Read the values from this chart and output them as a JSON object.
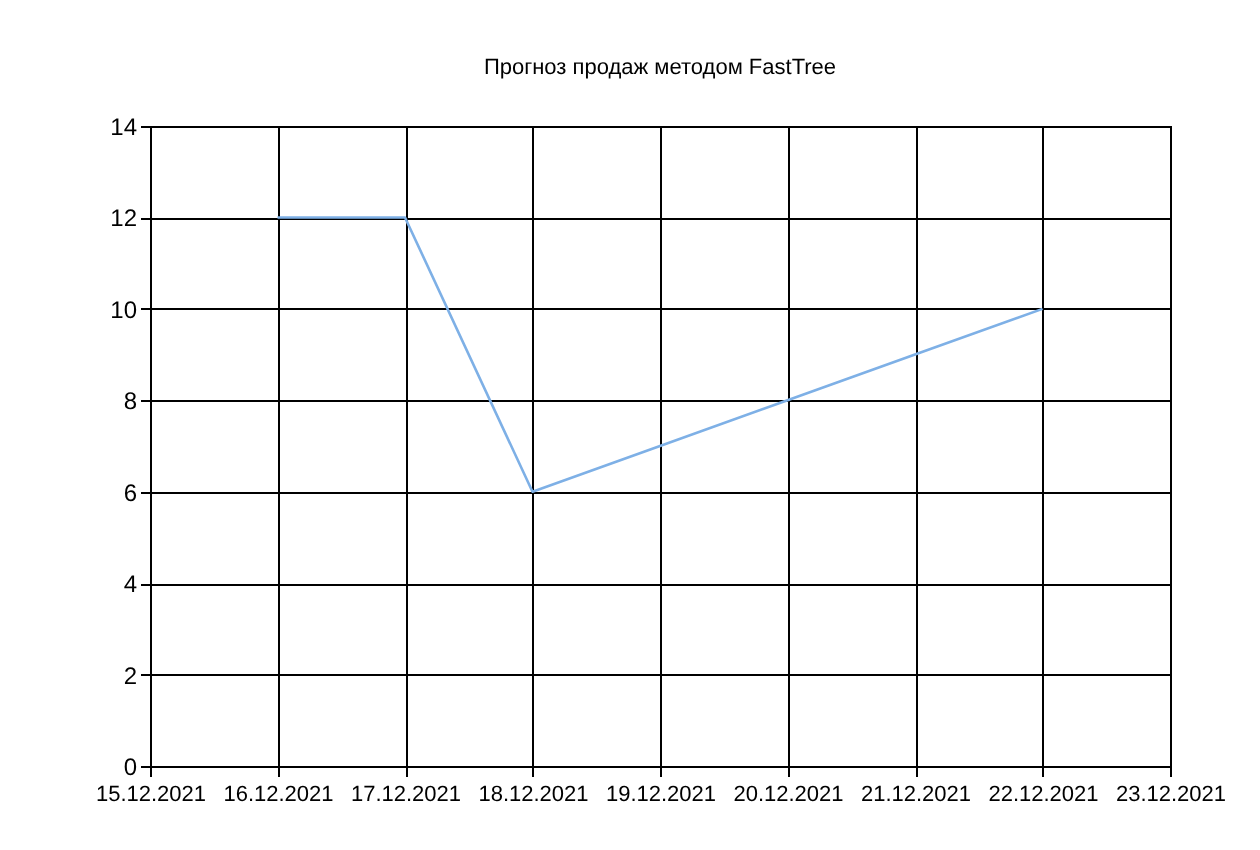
{
  "chart_data": {
    "type": "line",
    "title": "Прогноз продаж методом FastTree",
    "x": [
      "2021-12-16",
      "2021-12-17",
      "2021-12-18",
      "2021-12-19",
      "2021-12-20",
      "2021-12-21",
      "2021-12-22"
    ],
    "series": [
      {
        "color": "#7eb0e6",
        "values": [
          12,
          12,
          6,
          7,
          8,
          9,
          10
        ]
      }
    ],
    "xlim": [
      "2021-12-15",
      "2021-12-23"
    ],
    "xticks": [
      {
        "value": "2021-12-15",
        "label": "15.12.2021"
      },
      {
        "value": "2021-12-16",
        "label": "16.12.2021"
      },
      {
        "value": "2021-12-17",
        "label": "17.12.2021"
      },
      {
        "value": "2021-12-18",
        "label": "18.12.2021"
      },
      {
        "value": "2021-12-19",
        "label": "19.12.2021"
      },
      {
        "value": "2021-12-20",
        "label": "20.12.2021"
      },
      {
        "value": "2021-12-21",
        "label": "21.12.2021"
      },
      {
        "value": "2021-12-22",
        "label": "22.12.2021"
      },
      {
        "value": "2021-12-23",
        "label": "23.12.2021"
      }
    ],
    "ylim": [
      0,
      14
    ],
    "yticks": [
      0,
      2,
      4,
      6,
      8,
      10,
      12,
      14
    ],
    "grid": true,
    "marker": "none",
    "line_style": "solid"
  }
}
